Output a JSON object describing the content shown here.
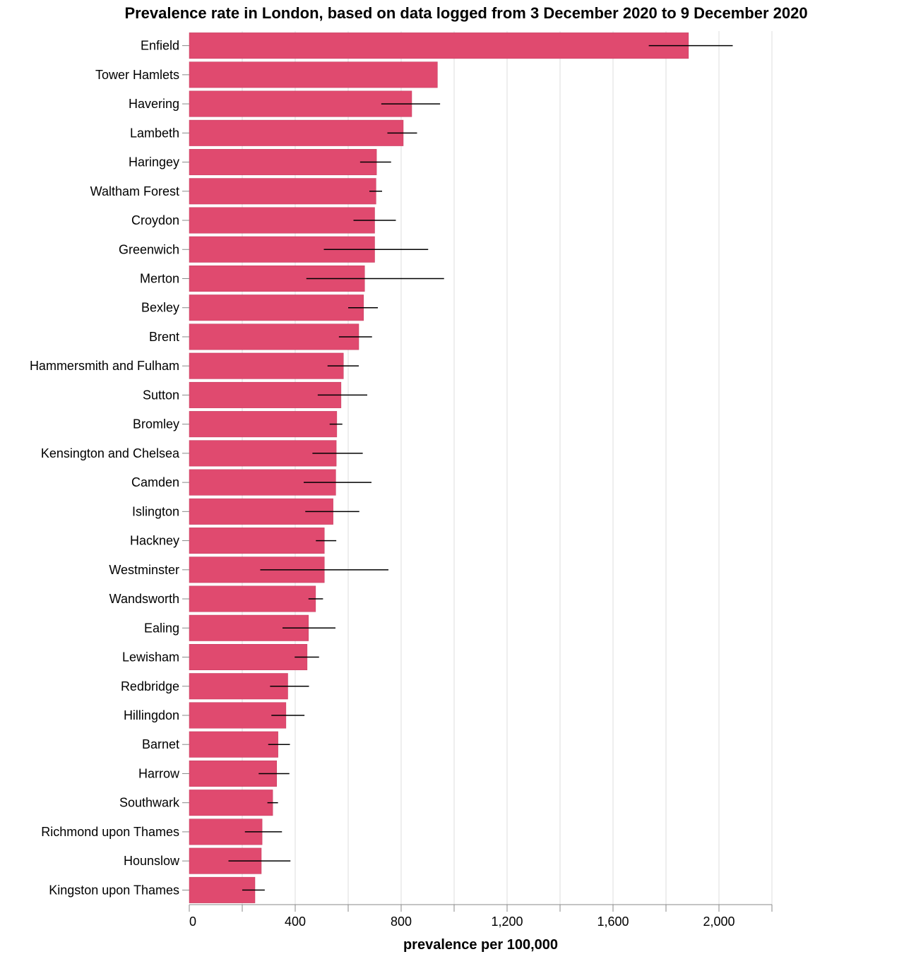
{
  "chart_data": {
    "type": "bar",
    "orientation": "horizontal",
    "title": "Prevalence rate in London, based on data logged from 3 December 2020 to 9 December 2020",
    "xlabel": "prevalence per 100,000",
    "ylabel": "",
    "xlim": [
      0,
      2200
    ],
    "x_ticks": [
      0,
      400,
      800,
      1200,
      1600,
      2000
    ],
    "x_tick_labels": [
      "0",
      "400",
      "800",
      "1,200",
      "1,600",
      "2,000"
    ],
    "grid": true,
    "legend": "none",
    "bar_color": "#e04a6f",
    "error_bar_color": "#000000",
    "categories": [
      "Enfield",
      "Tower Hamlets",
      "Havering",
      "Lambeth",
      "Haringey",
      "Waltham Forest",
      "Croydon",
      "Greenwich",
      "Merton",
      "Bexley",
      "Brent",
      "Hammersmith and Fulham",
      "Sutton",
      "Bromley",
      "Kensington and Chelsea",
      "Camden",
      "Islington",
      "Hackney",
      "Westminster",
      "Wandsworth",
      "Ealing",
      "Lewisham",
      "Redbridge",
      "Hillingdon",
      "Barnet",
      "Harrow",
      "Southwark",
      "Richmond upon Thames",
      "Hounslow",
      "Kingston upon Thames"
    ],
    "values": [
      1885,
      937,
      840,
      808,
      707,
      705,
      700,
      700,
      662,
      658,
      640,
      582,
      573,
      557,
      555,
      553,
      543,
      510,
      510,
      477,
      450,
      445,
      372,
      365,
      335,
      330,
      315,
      275,
      272,
      248
    ],
    "error_low": [
      1735,
      null,
      725,
      748,
      645,
      680,
      620,
      508,
      442,
      600,
      565,
      522,
      485,
      530,
      465,
      432,
      438,
      478,
      268,
      450,
      352,
      398,
      305,
      310,
      298,
      262,
      295,
      210,
      148,
      200
    ],
    "error_high": [
      2052,
      null,
      947,
      860,
      762,
      728,
      780,
      902,
      962,
      712,
      690,
      640,
      672,
      578,
      655,
      688,
      642,
      555,
      752,
      505,
      552,
      490,
      452,
      435,
      380,
      378,
      335,
      350,
      382,
      285
    ]
  }
}
